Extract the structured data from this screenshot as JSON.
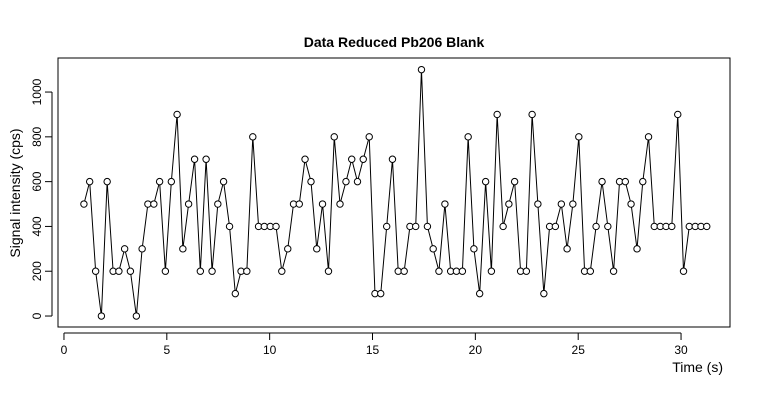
{
  "chart_data": {
    "type": "line",
    "title": "Data Reduced Pb206 Blank",
    "x_label": "Time (s)",
    "y_label": "Signal intensity (cps)",
    "x": [
      0.97,
      1.25,
      1.54,
      1.82,
      2.1,
      2.39,
      2.67,
      2.95,
      3.23,
      3.52,
      3.8,
      4.08,
      4.37,
      4.65,
      4.93,
      5.22,
      5.5,
      5.78,
      6.06,
      6.35,
      6.63,
      6.91,
      7.2,
      7.48,
      7.76,
      8.05,
      8.33,
      8.61,
      8.89,
      9.18,
      9.46,
      9.74,
      10.03,
      10.31,
      10.59,
      10.88,
      11.16,
      11.44,
      11.72,
      12.01,
      12.29,
      12.57,
      12.86,
      13.14,
      13.42,
      13.71,
      13.99,
      14.27,
      14.55,
      14.84,
      15.12,
      15.4,
      15.69,
      15.97,
      16.25,
      16.54,
      16.82,
      17.1,
      17.38,
      17.67,
      17.95,
      18.23,
      18.52,
      18.8,
      19.08,
      19.37,
      19.65,
      19.93,
      20.21,
      20.5,
      20.78,
      21.06,
      21.35,
      21.63,
      21.91,
      22.2,
      22.48,
      22.76,
      23.04,
      23.33,
      23.61,
      23.89,
      24.18,
      24.46,
      24.74,
      25.03,
      25.31,
      25.59,
      25.87,
      26.16,
      26.44,
      26.72,
      27.01,
      27.29,
      27.57,
      27.86,
      28.14,
      28.42,
      28.7,
      28.99,
      29.27,
      29.55,
      29.84,
      30.12,
      30.4,
      30.69,
      30.97,
      31.25
    ],
    "values": [
      500,
      600,
      200,
      0,
      600,
      200,
      200,
      300,
      200,
      0,
      300,
      500,
      500,
      600,
      200,
      600,
      900,
      300,
      500,
      700,
      200,
      700,
      200,
      500,
      600,
      400,
      100,
      200,
      200,
      800,
      400,
      400,
      400,
      400,
      200,
      300,
      500,
      500,
      700,
      600,
      300,
      500,
      200,
      800,
      500,
      600,
      700,
      600,
      700,
      800,
      100,
      100,
      400,
      700,
      200,
      200,
      400,
      400,
      1100,
      400,
      300,
      200,
      500,
      200,
      200,
      200,
      800,
      300,
      100,
      600,
      200,
      900,
      400,
      500,
      600,
      200,
      200,
      900,
      500,
      100,
      400,
      400,
      500,
      300,
      500,
      800,
      200,
      200,
      400,
      600,
      400,
      200,
      600,
      600,
      500,
      300,
      600,
      800,
      400,
      400,
      400,
      400,
      900,
      200,
      400,
      400,
      400,
      400
    ],
    "color": "#000000",
    "xlim": [
      -0.29,
      32.38
    ],
    "ylim": [
      -49,
      1152
    ],
    "xticks": [
      0,
      5,
      10,
      15,
      20,
      25,
      30
    ],
    "yticks": [
      0,
      200,
      400,
      600,
      800,
      1000
    ]
  }
}
